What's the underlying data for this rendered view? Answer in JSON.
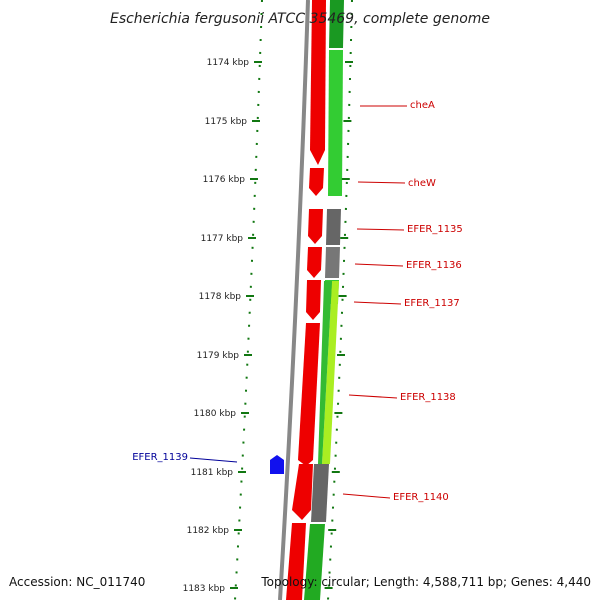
{
  "title": "Escherichia fergusonii ATCC 35469, complete genome",
  "footer": {
    "accession": "Accession: NC_011740",
    "topology": "Topology: circular; Length: 4,588,711 bp; Genes: 4,440"
  },
  "colors": {
    "forward_strand": "#ee0000",
    "reverse_strand": "#22aa22",
    "reverse_strand_light": "#aaee22",
    "unknown_gene": "#666666",
    "backbone": "#888888",
    "tick": "#117711",
    "label_forward": "#cc0000",
    "label_other": "#000099",
    "marker": "#1111ee"
  },
  "ticks": [
    "1174 kbp",
    "1175 kbp",
    "1176 kbp",
    "1177 kbp",
    "1178 kbp",
    "1179 kbp",
    "1180 kbp",
    "1181 kbp",
    "1182 kbp",
    "1183 kbp"
  ],
  "gene_labels": [
    {
      "name": "cheA",
      "color": "#cc0000"
    },
    {
      "name": "cheW",
      "color": "#cc0000"
    },
    {
      "name": "EFER_1135",
      "color": "#cc0000"
    },
    {
      "name": "EFER_1136",
      "color": "#cc0000"
    },
    {
      "name": "EFER_1137",
      "color": "#cc0000"
    },
    {
      "name": "EFER_1138",
      "color": "#cc0000"
    },
    {
      "name": "EFER_1140",
      "color": "#cc0000"
    },
    {
      "name": "EFER_1139",
      "color": "#000099"
    }
  ]
}
